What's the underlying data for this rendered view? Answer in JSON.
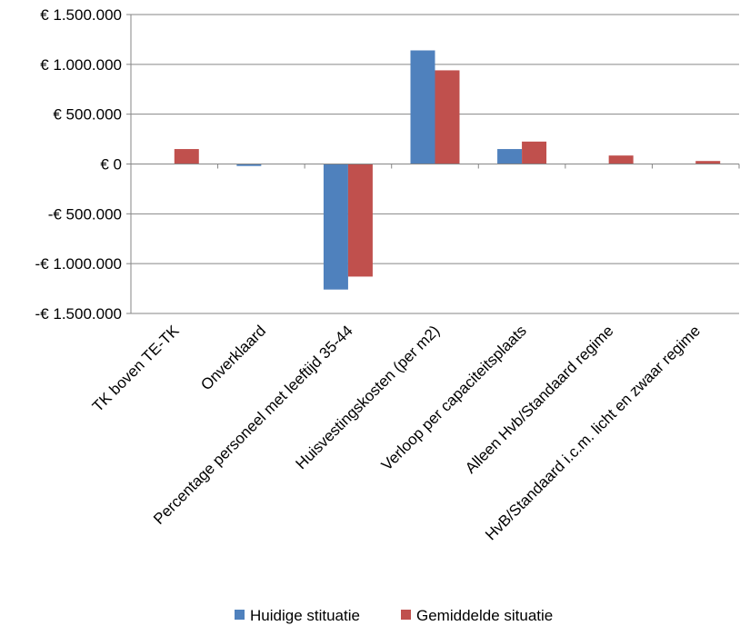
{
  "chart_data": {
    "type": "bar",
    "title": "",
    "xlabel": "",
    "ylabel": "",
    "ylim": [
      -1500000,
      1500000
    ],
    "yticks": [
      1500000,
      1000000,
      500000,
      0,
      -500000,
      -1000000,
      -1500000
    ],
    "ytick_labels": [
      "€ 1.500.000",
      "€ 1.000.000",
      "€ 500.000",
      "€ 0",
      "-€ 500.000",
      "-€ 1.000.000",
      "-€ 1.500.000"
    ],
    "grid": true,
    "legend_position": "bottom",
    "categories": [
      "TK boven TE-TK",
      "Onverklaard",
      "Percentage personeel met leeftijd 35-44",
      "Huisvestingskosten (per m2)",
      "Verloop per capaciteitsplaats",
      "Alleen Hvb/Standaard regime",
      "HvB/Standaard i.c.m. licht en zwaar regime"
    ],
    "series": [
      {
        "name": "Huidige stituatie",
        "color": "#4f81bd",
        "values": [
          0,
          -20000,
          -1260000,
          1140000,
          150000,
          0,
          0
        ]
      },
      {
        "name": "Gemiddelde situatie",
        "color": "#c0504d",
        "values": [
          150000,
          0,
          -1130000,
          940000,
          225000,
          85000,
          30000
        ]
      }
    ]
  }
}
